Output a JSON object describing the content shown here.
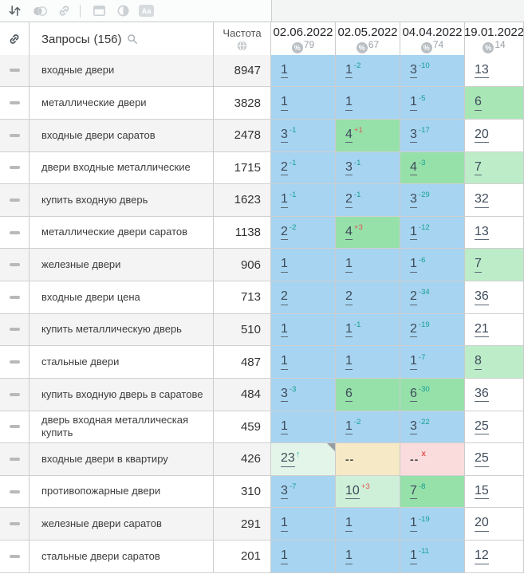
{
  "palette": {
    "blue": "#a7d4f1",
    "green": "#96e0aa",
    "midgreen": "#a9e6b6",
    "lightgreen": "#bdecc8",
    "palegreen": "#cff0d8",
    "fadegreen": "#e3f5e9",
    "beige": "#f5e9c6",
    "pink": "#fbdcdc",
    "stripe": "#f4f4f4",
    "improve_change": "#14a092",
    "decline_change": "#e25450",
    "position_link": "#3d4b59"
  },
  "toolbar": {
    "icons": [
      "sort-icon",
      "circles-icon",
      "link-icon",
      "divider",
      "panel-icon",
      "contrast-icon",
      "text-style-icon"
    ]
  },
  "header": {
    "queries_label": "Запросы",
    "queries_count": "(156)",
    "frequency_label": "Частота",
    "dates": [
      {
        "date": "02.06.2022",
        "visibility": "79"
      },
      {
        "date": "02.05.2022",
        "visibility": "67"
      },
      {
        "date": "04.04.2022",
        "visibility": "74"
      },
      {
        "date": "19.01.2022",
        "visibility": "14"
      }
    ]
  },
  "rows": [
    {
      "keyword": "входные двери",
      "frequency": "8947",
      "cells": [
        {
          "pos": "1",
          "bg": "blue"
        },
        {
          "pos": "1",
          "change": "-2",
          "bg": "blue"
        },
        {
          "pos": "3",
          "change": "-10",
          "bg": "blue"
        },
        {
          "pos": "13"
        }
      ]
    },
    {
      "keyword": "металлические двери",
      "frequency": "3828",
      "cells": [
        {
          "pos": "1",
          "bg": "blue"
        },
        {
          "pos": "1",
          "bg": "blue"
        },
        {
          "pos": "1",
          "change": "-5",
          "bg": "blue"
        },
        {
          "pos": "6",
          "bg": "midgreen"
        }
      ]
    },
    {
      "keyword": "входные двери саратов",
      "frequency": "2478",
      "cells": [
        {
          "pos": "3",
          "change": "-1",
          "bg": "blue"
        },
        {
          "pos": "4",
          "change": "+1",
          "bg": "green"
        },
        {
          "pos": "3",
          "change": "-17",
          "bg": "blue"
        },
        {
          "pos": "20"
        }
      ]
    },
    {
      "keyword": "двери входные металлические",
      "frequency": "1715",
      "cells": [
        {
          "pos": "2",
          "change": "-1",
          "bg": "blue"
        },
        {
          "pos": "3",
          "change": "-1",
          "bg": "blue"
        },
        {
          "pos": "4",
          "change": "-3",
          "bg": "green"
        },
        {
          "pos": "7",
          "bg": "lightgreen"
        }
      ]
    },
    {
      "keyword": "купить входную дверь",
      "frequency": "1623",
      "cells": [
        {
          "pos": "1",
          "change": "-1",
          "bg": "blue"
        },
        {
          "pos": "2",
          "change": "-1",
          "bg": "blue"
        },
        {
          "pos": "3",
          "change": "-29",
          "bg": "blue"
        },
        {
          "pos": "32"
        }
      ]
    },
    {
      "keyword": "металлические двери саратов",
      "frequency": "1138",
      "cells": [
        {
          "pos": "2",
          "change": "-2",
          "bg": "blue"
        },
        {
          "pos": "4",
          "change": "+3",
          "bg": "green"
        },
        {
          "pos": "1",
          "change": "-12",
          "bg": "blue"
        },
        {
          "pos": "13"
        }
      ]
    },
    {
      "keyword": "железные двери",
      "frequency": "906",
      "cells": [
        {
          "pos": "1",
          "bg": "blue"
        },
        {
          "pos": "1",
          "bg": "blue"
        },
        {
          "pos": "1",
          "change": "-6",
          "bg": "blue"
        },
        {
          "pos": "7",
          "bg": "lightgreen"
        }
      ]
    },
    {
      "keyword": "входные двери цена",
      "frequency": "713",
      "cells": [
        {
          "pos": "2",
          "bg": "blue"
        },
        {
          "pos": "2",
          "bg": "blue"
        },
        {
          "pos": "2",
          "change": "-34",
          "bg": "blue"
        },
        {
          "pos": "36"
        }
      ]
    },
    {
      "keyword": "купить металлическую дверь",
      "frequency": "510",
      "cells": [
        {
          "pos": "1",
          "bg": "blue"
        },
        {
          "pos": "1",
          "change": "-1",
          "bg": "blue"
        },
        {
          "pos": "2",
          "change": "-19",
          "bg": "blue"
        },
        {
          "pos": "21"
        }
      ]
    },
    {
      "keyword": "стальные двери",
      "frequency": "487",
      "cells": [
        {
          "pos": "1",
          "bg": "blue"
        },
        {
          "pos": "1",
          "bg": "blue"
        },
        {
          "pos": "1",
          "change": "-7",
          "bg": "blue"
        },
        {
          "pos": "8",
          "bg": "lightgreen"
        }
      ]
    },
    {
      "keyword": "купить входную дверь в саратове",
      "frequency": "484",
      "cells": [
        {
          "pos": "3",
          "change": "-3",
          "bg": "blue"
        },
        {
          "pos": "6",
          "bg": "green"
        },
        {
          "pos": "6",
          "change": "-30",
          "bg": "green"
        },
        {
          "pos": "36"
        }
      ]
    },
    {
      "keyword": "дверь входная металлическая купить",
      "frequency": "459",
      "cells": [
        {
          "pos": "1",
          "bg": "blue"
        },
        {
          "pos": "1",
          "change": "-2",
          "bg": "blue"
        },
        {
          "pos": "3",
          "change": "-22",
          "bg": "blue"
        },
        {
          "pos": "25"
        }
      ]
    },
    {
      "keyword": "входные двери в квартиру",
      "frequency": "426",
      "cells": [
        {
          "pos": "23",
          "arrow": "up",
          "bg": "fadegreen",
          "note": true
        },
        {
          "pos": "--",
          "bg": "beige"
        },
        {
          "pos": "--",
          "mark": "x",
          "bg": "pink"
        },
        {
          "pos": "25"
        }
      ]
    },
    {
      "keyword": "противопожарные двери",
      "frequency": "310",
      "cells": [
        {
          "pos": "3",
          "change": "-7",
          "bg": "blue"
        },
        {
          "pos": "10",
          "change": "+3",
          "bg": "palegreen"
        },
        {
          "pos": "7",
          "change": "-8",
          "bg": "green"
        },
        {
          "pos": "15"
        }
      ]
    },
    {
      "keyword": "железные двери саратов",
      "frequency": "291",
      "cells": [
        {
          "pos": "1",
          "bg": "blue"
        },
        {
          "pos": "1",
          "bg": "blue"
        },
        {
          "pos": "1",
          "change": "-19",
          "bg": "blue"
        },
        {
          "pos": "20"
        }
      ]
    },
    {
      "keyword": "стальные двери саратов",
      "frequency": "201",
      "cells": [
        {
          "pos": "1",
          "bg": "blue"
        },
        {
          "pos": "1",
          "bg": "blue"
        },
        {
          "pos": "1",
          "change": "-11",
          "bg": "blue"
        },
        {
          "pos": "12"
        }
      ]
    }
  ]
}
